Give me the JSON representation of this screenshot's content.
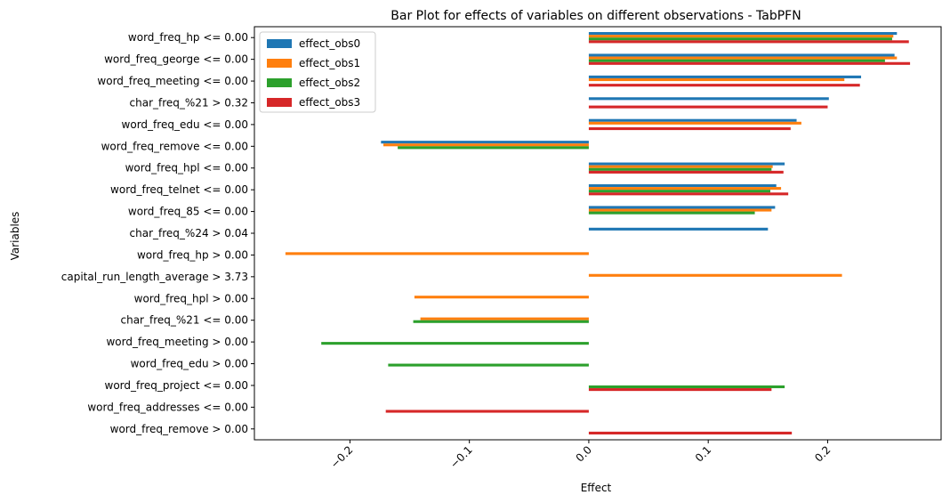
{
  "chart_data": {
    "type": "bar",
    "orientation": "horizontal",
    "title": "Bar Plot for effects of variables on different observations - TabPFN",
    "xlabel": "Effect",
    "ylabel": "Variables",
    "xlim": [
      -0.28,
      0.295
    ],
    "xticks": [
      -0.2,
      -0.1,
      0.0,
      0.1,
      0.2
    ],
    "xtick_labels": [
      "−0.2",
      "−0.1",
      "0.0",
      "0.1",
      "0.2"
    ],
    "legend_position": "top-left",
    "grid": false,
    "categories": [
      "word_freq_hp <= 0.00",
      "word_freq_george <= 0.00",
      "word_freq_meeting <= 0.00",
      "char_freq_%21 > 0.32",
      "word_freq_edu <= 0.00",
      "word_freq_remove <= 0.00",
      "word_freq_hpl <= 0.00",
      "word_freq_telnet <= 0.00",
      "word_freq_85 <= 0.00",
      "char_freq_%24 > 0.04",
      "word_freq_hp > 0.00",
      "capital_run_length_average > 3.73",
      "word_freq_hpl > 0.00",
      "char_freq_%21 <= 0.00",
      "word_freq_meeting > 0.00",
      "word_freq_edu > 0.00",
      "word_freq_project <= 0.00",
      "word_freq_addresses <= 0.00",
      "word_freq_remove > 0.00"
    ],
    "series": [
      {
        "name": "effect_obs0",
        "color": "#1f77b4",
        "values": [
          0.258,
          0.256,
          0.228,
          0.201,
          0.174,
          -0.174,
          0.164,
          0.157,
          0.156,
          0.15,
          0,
          0,
          0,
          0,
          0,
          0,
          0,
          0,
          0
        ]
      },
      {
        "name": "effect_obs1",
        "color": "#ff7f0e",
        "values": [
          0.255,
          0.258,
          0.214,
          0,
          0.178,
          -0.172,
          0.154,
          0.161,
          0.153,
          0,
          -0.254,
          0.212,
          -0.146,
          -0.141,
          0,
          0,
          0,
          0,
          0
        ]
      },
      {
        "name": "effect_obs2",
        "color": "#2ca02c",
        "values": [
          0.254,
          0.248,
          0,
          0,
          0,
          -0.16,
          0.153,
          0.152,
          0.139,
          0,
          0,
          0,
          0,
          -0.147,
          -0.224,
          -0.168,
          0.164,
          0,
          0
        ]
      },
      {
        "name": "effect_obs3",
        "color": "#d62728",
        "values": [
          0.268,
          0.269,
          0.227,
          0.2,
          0.169,
          0,
          0.163,
          0.167,
          0,
          0,
          0,
          0,
          0,
          0,
          0,
          0,
          0.153,
          -0.17,
          0.17
        ]
      }
    ]
  }
}
